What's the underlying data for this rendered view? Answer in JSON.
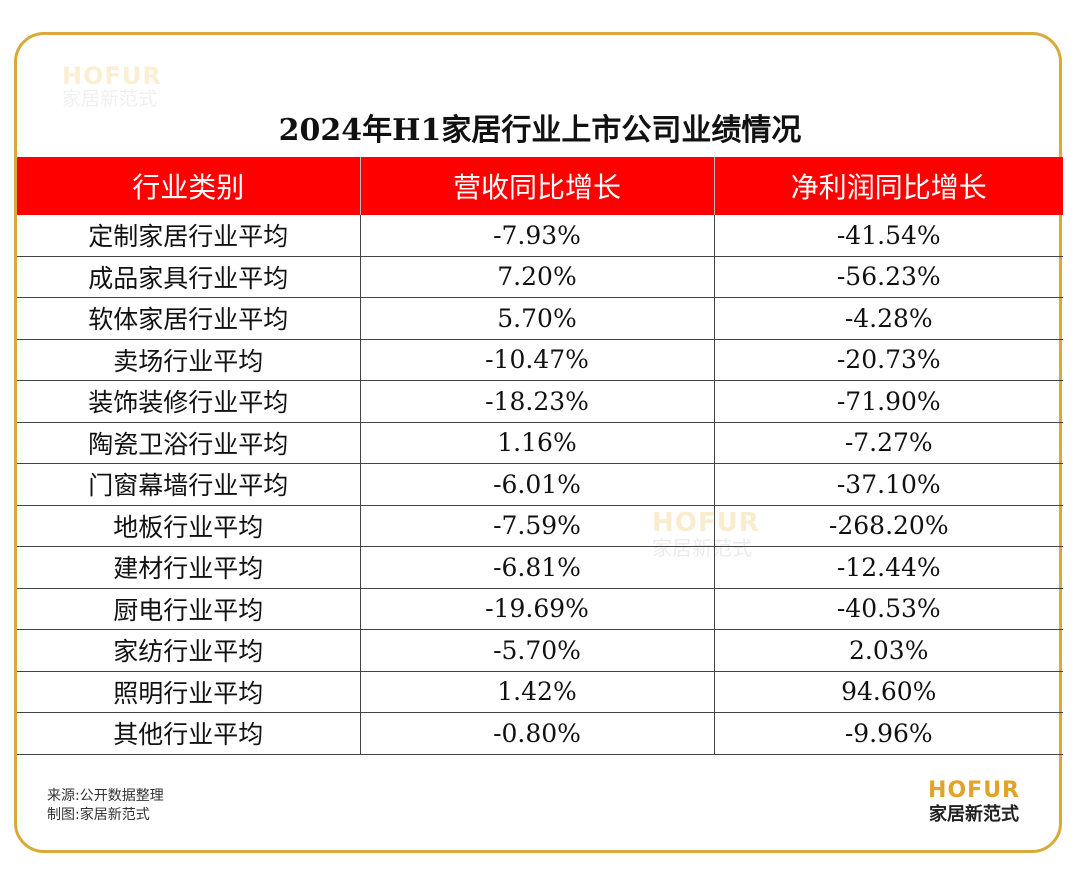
{
  "watermark": {
    "brand": "HOFUR",
    "sub": "家居新范式"
  },
  "footer": {
    "source": "来源:公开数据整理",
    "maker": "制图:家居新范式"
  },
  "logo": {
    "brand": "HOFUR",
    "sub": "家居新范式"
  },
  "colors": {
    "header_bg": "#ff0000",
    "frame": "#d9aa3a",
    "green_value": "#33b35a",
    "red_value": "#f02020"
  },
  "chart_data": {
    "type": "table",
    "title": "2024年H1家居行业上市公司业绩情况",
    "columns": [
      "行业类别",
      "营收同比增长",
      "净利润同比增长"
    ],
    "rows": [
      {
        "category": "定制家居行业平均",
        "revenue": "-7.93%",
        "revenue_color": "green",
        "profit": "-41.54%",
        "profit_color": "green"
      },
      {
        "category": "成品家具行业平均",
        "revenue": "7.20%",
        "revenue_color": "black",
        "profit": "-56.23%",
        "profit_color": "green"
      },
      {
        "category": "软体家居行业平均",
        "revenue": "5.70%",
        "revenue_color": "black",
        "profit": "-4.28%",
        "profit_color": "green"
      },
      {
        "category": "卖场行业平均",
        "revenue": "-10.47%",
        "revenue_color": "green",
        "profit": "-20.73%",
        "profit_color": "red"
      },
      {
        "category": "装饰装修行业平均",
        "revenue": "-18.23%",
        "revenue_color": "green",
        "profit": "-71.90%",
        "profit_color": "green"
      },
      {
        "category": "陶瓷卫浴行业平均",
        "revenue": "1.16%",
        "revenue_color": "black",
        "profit": "-7.27%",
        "profit_color": "green"
      },
      {
        "category": "门窗幕墙行业平均",
        "revenue": "-6.01%",
        "revenue_color": "green",
        "profit": "-37.10%",
        "profit_color": "green"
      },
      {
        "category": "地板行业平均",
        "revenue": "-7.59%",
        "revenue_color": "green",
        "profit": "-268.20%",
        "profit_color": "red"
      },
      {
        "category": "建材行业平均",
        "revenue": "-6.81%",
        "revenue_color": "green",
        "profit": "-12.44%",
        "profit_color": "green"
      },
      {
        "category": "厨电行业平均",
        "revenue": "-19.69%",
        "revenue_color": "green",
        "profit": "-40.53%",
        "profit_color": "green"
      },
      {
        "category": "家纺行业平均",
        "revenue": "-5.70%",
        "revenue_color": "green",
        "profit": "2.03%",
        "profit_color": "black"
      },
      {
        "category": "照明行业平均",
        "revenue": "1.42%",
        "revenue_color": "black",
        "profit": "94.60%",
        "profit_color": "black"
      },
      {
        "category": "其他行业平均",
        "revenue": "-0.80%",
        "revenue_color": "green",
        "profit": "-9.96%",
        "profit_color": "red"
      }
    ]
  }
}
